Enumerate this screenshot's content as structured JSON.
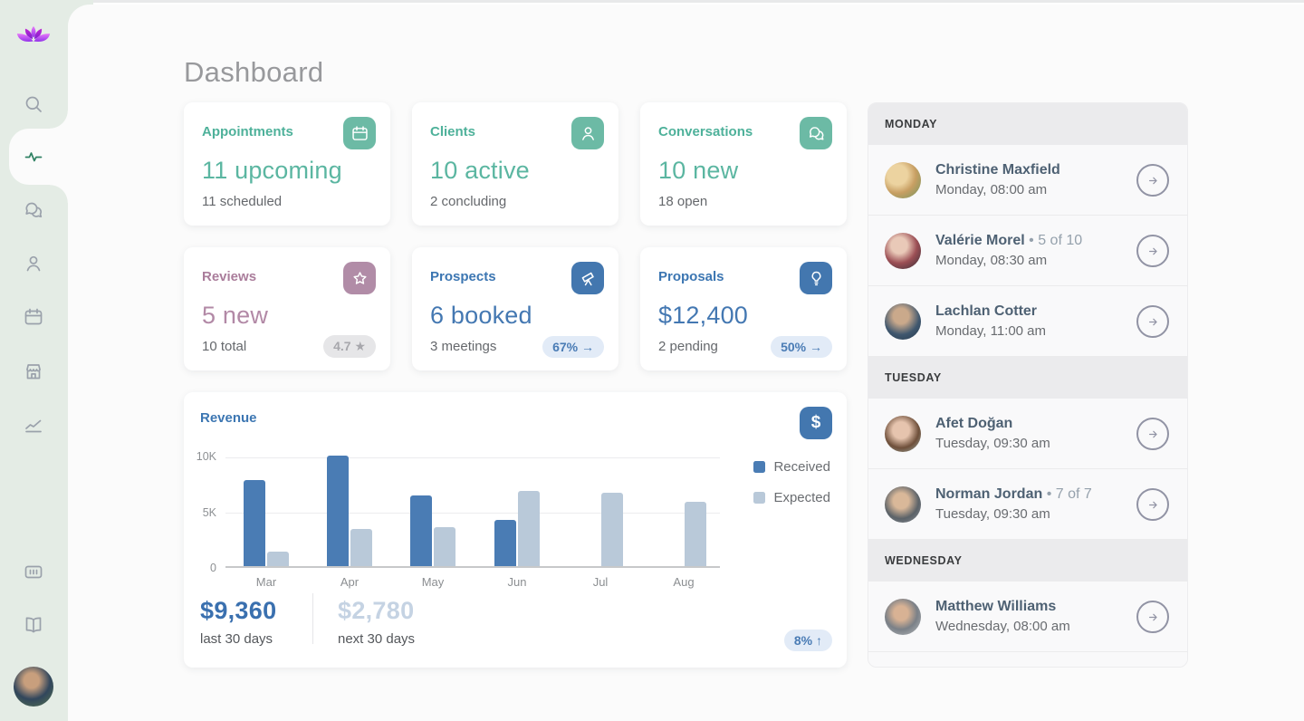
{
  "header": {
    "title": "Dashboard"
  },
  "sidebar": {
    "logo": "lotus-logo-icon",
    "items": [
      {
        "icon": "search-icon",
        "active": false
      },
      {
        "icon": "activity-icon",
        "active": true
      },
      {
        "icon": "conversations-icon",
        "active": false
      },
      {
        "icon": "clients-icon",
        "active": false
      },
      {
        "icon": "calendar-icon",
        "active": false
      },
      {
        "icon": "store-icon",
        "active": false
      },
      {
        "icon": "analytics-icon",
        "active": false
      },
      {
        "icon": "terminal-icon",
        "active": false
      },
      {
        "icon": "library-icon",
        "active": false
      }
    ],
    "avatar": "user-avatar"
  },
  "stat_cards": [
    {
      "title": "Appointments",
      "icon": "calendar-icon",
      "theme": "teal",
      "accent": "#5bb6a1",
      "primary": "11 upcoming",
      "secondary": "11 scheduled",
      "badge": null
    },
    {
      "title": "Clients",
      "icon": "clients-icon",
      "theme": "teal",
      "accent": "#5bb6a1",
      "primary": "10 active",
      "secondary": "2 concluding",
      "badge": null
    },
    {
      "title": "Conversations",
      "icon": "conversations-icon",
      "theme": "teal",
      "accent": "#5bb6a1",
      "primary": "10 new",
      "secondary": "18 open",
      "badge": null
    },
    {
      "title": "Reviews",
      "icon": "star-icon",
      "theme": "mauve",
      "accent": "#b289a6",
      "primary": "5 new",
      "secondary": "10 total",
      "badge": {
        "text": "4.7 ★",
        "style": "gray"
      }
    },
    {
      "title": "Prospects",
      "icon": "telescope-icon",
      "theme": "blue",
      "accent": "#4478b2",
      "primary": "6 booked",
      "secondary": "3 meetings",
      "badge": {
        "text": "67% →",
        "style": "blue"
      }
    },
    {
      "title": "Proposals",
      "icon": "lightbulb-icon",
      "theme": "blue",
      "accent": "#4478b2",
      "primary": "$12,400",
      "secondary": "2 pending",
      "badge": {
        "text": "50% →",
        "style": "blue"
      }
    }
  ],
  "revenue": {
    "title": "Revenue",
    "icon": "dollar-icon",
    "summary": {
      "received_amount": "$9,360",
      "received_label": "last 30 days",
      "expected_amount": "$2,780",
      "expected_label": "next 30 days",
      "badge": "8% ↑"
    }
  },
  "chart_data": {
    "type": "bar",
    "title": "Revenue",
    "categories": [
      "Mar",
      "Apr",
      "May",
      "Jun",
      "Jul",
      "Aug"
    ],
    "series": [
      {
        "name": "Received",
        "color": "#4a7cb4",
        "values": [
          7800,
          10000,
          6400,
          4200,
          null,
          null
        ]
      },
      {
        "name": "Expected",
        "color": "#b9c9d9",
        "values": [
          1300,
          3400,
          3500,
          6800,
          6600,
          5800
        ]
      }
    ],
    "ylim": [
      0,
      10000
    ],
    "yticks": [
      "10K",
      "5K",
      "0"
    ],
    "grid": true,
    "legend_position": "right"
  },
  "schedule": {
    "sections": [
      {
        "day": "MONDAY",
        "items": [
          {
            "name": "Christine Maxfield",
            "meta": "",
            "time": "Monday, 08:00 am"
          },
          {
            "name": "Valérie Morel",
            "meta": "• 5 of 10",
            "time": "Monday, 08:30 am"
          },
          {
            "name": "Lachlan Cotter",
            "meta": "",
            "time": "Monday, 11:00 am"
          }
        ]
      },
      {
        "day": "TUESDAY",
        "items": [
          {
            "name": "Afet Doğan",
            "meta": "",
            "time": "Tuesday, 09:30 am"
          },
          {
            "name": "Norman Jordan",
            "meta": "• 7 of 7",
            "time": "Tuesday, 09:30 am"
          }
        ]
      },
      {
        "day": "WEDNESDAY",
        "items": [
          {
            "name": "Matthew Williams",
            "meta": "",
            "time": "Wednesday, 08:00 am"
          }
        ]
      }
    ]
  }
}
